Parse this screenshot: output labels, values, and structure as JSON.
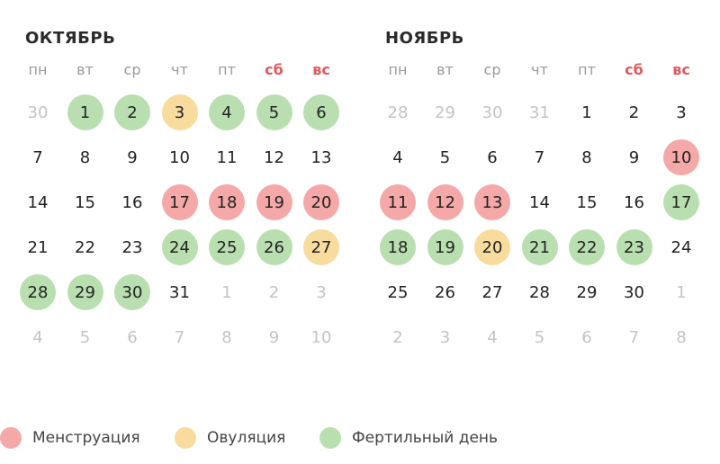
{
  "colors": {
    "menstruation": "#f5a8a8",
    "ovulation": "#f7dc9e",
    "fertile": "#b9dfb0",
    "weekend": "#e05a5a"
  },
  "weekdays": [
    {
      "label": "пн",
      "weekend": false
    },
    {
      "label": "вт",
      "weekend": false
    },
    {
      "label": "ср",
      "weekend": false
    },
    {
      "label": "чт",
      "weekend": false
    },
    {
      "label": "пт",
      "weekend": false
    },
    {
      "label": "сб",
      "weekend": true
    },
    {
      "label": "вс",
      "weekend": true
    }
  ],
  "months": [
    {
      "title": "ОКТЯБРЬ",
      "weeks": [
        [
          {
            "d": "30",
            "t": "x"
          },
          {
            "d": "1",
            "t": "f"
          },
          {
            "d": "2",
            "t": "f"
          },
          {
            "d": "3",
            "t": "o"
          },
          {
            "d": "4",
            "t": "f"
          },
          {
            "d": "5",
            "t": "f"
          },
          {
            "d": "6",
            "t": "f"
          }
        ],
        [
          {
            "d": "7",
            "t": ""
          },
          {
            "d": "8",
            "t": ""
          },
          {
            "d": "9",
            "t": ""
          },
          {
            "d": "10",
            "t": ""
          },
          {
            "d": "11",
            "t": ""
          },
          {
            "d": "12",
            "t": ""
          },
          {
            "d": "13",
            "t": ""
          }
        ],
        [
          {
            "d": "14",
            "t": ""
          },
          {
            "d": "15",
            "t": ""
          },
          {
            "d": "16",
            "t": ""
          },
          {
            "d": "17",
            "t": "m"
          },
          {
            "d": "18",
            "t": "m"
          },
          {
            "d": "19",
            "t": "m"
          },
          {
            "d": "20",
            "t": "m"
          }
        ],
        [
          {
            "d": "21",
            "t": ""
          },
          {
            "d": "22",
            "t": ""
          },
          {
            "d": "23",
            "t": ""
          },
          {
            "d": "24",
            "t": "f"
          },
          {
            "d": "25",
            "t": "f"
          },
          {
            "d": "26",
            "t": "f"
          },
          {
            "d": "27",
            "t": "o"
          }
        ],
        [
          {
            "d": "28",
            "t": "f"
          },
          {
            "d": "29",
            "t": "f"
          },
          {
            "d": "30",
            "t": "f"
          },
          {
            "d": "31",
            "t": ""
          },
          {
            "d": "1",
            "t": "x"
          },
          {
            "d": "2",
            "t": "x"
          },
          {
            "d": "3",
            "t": "x"
          }
        ],
        [
          {
            "d": "4",
            "t": "x"
          },
          {
            "d": "5",
            "t": "x"
          },
          {
            "d": "6",
            "t": "x"
          },
          {
            "d": "7",
            "t": "x"
          },
          {
            "d": "8",
            "t": "x"
          },
          {
            "d": "9",
            "t": "x"
          },
          {
            "d": "10",
            "t": "x"
          }
        ]
      ]
    },
    {
      "title": "НОЯБРЬ",
      "weeks": [
        [
          {
            "d": "28",
            "t": "x"
          },
          {
            "d": "29",
            "t": "x"
          },
          {
            "d": "30",
            "t": "x"
          },
          {
            "d": "31",
            "t": "x"
          },
          {
            "d": "1",
            "t": ""
          },
          {
            "d": "2",
            "t": ""
          },
          {
            "d": "3",
            "t": ""
          }
        ],
        [
          {
            "d": "4",
            "t": ""
          },
          {
            "d": "5",
            "t": ""
          },
          {
            "d": "6",
            "t": ""
          },
          {
            "d": "7",
            "t": ""
          },
          {
            "d": "8",
            "t": ""
          },
          {
            "d": "9",
            "t": ""
          },
          {
            "d": "10",
            "t": "m"
          }
        ],
        [
          {
            "d": "11",
            "t": "m"
          },
          {
            "d": "12",
            "t": "m"
          },
          {
            "d": "13",
            "t": "m"
          },
          {
            "d": "14",
            "t": ""
          },
          {
            "d": "15",
            "t": ""
          },
          {
            "d": "16",
            "t": ""
          },
          {
            "d": "17",
            "t": "f"
          }
        ],
        [
          {
            "d": "18",
            "t": "f"
          },
          {
            "d": "19",
            "t": "f"
          },
          {
            "d": "20",
            "t": "o"
          },
          {
            "d": "21",
            "t": "f"
          },
          {
            "d": "22",
            "t": "f"
          },
          {
            "d": "23",
            "t": "f"
          },
          {
            "d": "24",
            "t": ""
          }
        ],
        [
          {
            "d": "25",
            "t": ""
          },
          {
            "d": "26",
            "t": ""
          },
          {
            "d": "27",
            "t": ""
          },
          {
            "d": "28",
            "t": ""
          },
          {
            "d": "29",
            "t": ""
          },
          {
            "d": "30",
            "t": ""
          },
          {
            "d": "1",
            "t": "x"
          }
        ],
        [
          {
            "d": "2",
            "t": "x"
          },
          {
            "d": "3",
            "t": "x"
          },
          {
            "d": "4",
            "t": "x"
          },
          {
            "d": "5",
            "t": "x"
          },
          {
            "d": "6",
            "t": "x"
          },
          {
            "d": "7",
            "t": "x"
          },
          {
            "d": "8",
            "t": "x"
          }
        ]
      ]
    }
  ],
  "legend": [
    {
      "label": "Менструация",
      "type": "m"
    },
    {
      "label": "Овуляция",
      "type": "o"
    },
    {
      "label": "Фертильный день",
      "type": "f"
    }
  ]
}
